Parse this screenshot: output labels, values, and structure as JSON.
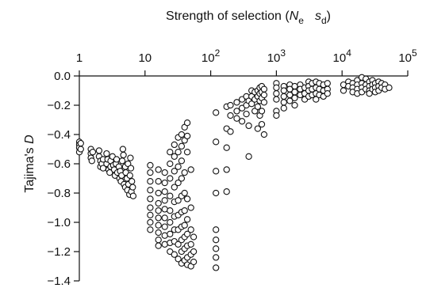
{
  "chart_data": {
    "type": "scatter",
    "title": "",
    "xlabel": {
      "prefix": "Strength of selection (",
      "var1": "N",
      "sub1": "e",
      "var2": "s",
      "sub2": "d",
      "suffix": ")"
    },
    "ylabel": {
      "prefix": "Tajima's ",
      "var": "D"
    },
    "xscale": "log",
    "xlim": [
      1,
      100000
    ],
    "ylim": [
      -1.4,
      0.0
    ],
    "x_axis_position": "top",
    "grid": false,
    "xticks": [
      {
        "value": 1,
        "base": "1",
        "exp": ""
      },
      {
        "value": 10,
        "base": "10",
        "exp": ""
      },
      {
        "value": 100,
        "base": "10",
        "exp": "2"
      },
      {
        "value": 1000,
        "base": "10",
        "exp": "3"
      },
      {
        "value": 10000,
        "base": "10",
        "exp": "4"
      },
      {
        "value": 100000,
        "base": "10",
        "exp": "5"
      }
    ],
    "yticks": [
      {
        "value": 0.0,
        "label": "0.0"
      },
      {
        "value": -0.2,
        "label": "−0.2"
      },
      {
        "value": -0.4,
        "label": "−0.4"
      },
      {
        "value": -0.6,
        "label": "−0.6"
      },
      {
        "value": -0.8,
        "label": "−0.8"
      },
      {
        "value": -1.0,
        "label": "−1.0"
      },
      {
        "value": -1.2,
        "label": "−1.2"
      },
      {
        "value": -1.4,
        "label": "−1.4"
      }
    ],
    "points": [
      [
        1.0,
        -0.45
      ],
      [
        1.0,
        -0.47
      ],
      [
        1.0,
        -0.49
      ],
      [
        1.0,
        -0.52
      ],
      [
        1.05,
        -0.46
      ],
      [
        1.05,
        -0.5
      ],
      [
        1.5,
        -0.5
      ],
      [
        1.5,
        -0.53
      ],
      [
        1.5,
        -0.56
      ],
      [
        1.55,
        -0.58
      ],
      [
        1.6,
        -0.52
      ],
      [
        2.0,
        -0.51
      ],
      [
        2.0,
        -0.55
      ],
      [
        2.1,
        -0.58
      ],
      [
        2.1,
        -0.62
      ],
      [
        2.2,
        -0.6
      ],
      [
        2.3,
        -0.57
      ],
      [
        2.3,
        -0.63
      ],
      [
        2.6,
        -0.53
      ],
      [
        2.6,
        -0.6
      ],
      [
        2.7,
        -0.57
      ],
      [
        2.8,
        -0.64
      ],
      [
        2.9,
        -0.66
      ],
      [
        3.0,
        -0.58
      ],
      [
        3.0,
        -0.62
      ],
      [
        3.2,
        -0.55
      ],
      [
        3.3,
        -0.61
      ],
      [
        3.4,
        -0.64
      ],
      [
        3.5,
        -0.68
      ],
      [
        3.6,
        -0.6
      ],
      [
        3.7,
        -0.57
      ],
      [
        3.8,
        -0.66
      ],
      [
        4.0,
        -0.62
      ],
      [
        4.1,
        -0.7
      ],
      [
        4.2,
        -0.65
      ],
      [
        4.3,
        -0.72
      ],
      [
        4.4,
        -0.68
      ],
      [
        4.5,
        -0.58
      ],
      [
        4.6,
        -0.5
      ],
      [
        4.7,
        -0.54
      ],
      [
        4.8,
        -0.74
      ],
      [
        5.0,
        -0.62
      ],
      [
        5.0,
        -0.76
      ],
      [
        5.1,
        -0.66
      ],
      [
        5.3,
        -0.7
      ],
      [
        5.4,
        -0.78
      ],
      [
        5.5,
        -0.6
      ],
      [
        5.6,
        -0.74
      ],
      [
        5.8,
        -0.81
      ],
      [
        5.9,
        -0.68
      ],
      [
        6.0,
        -0.56
      ],
      [
        6.1,
        -0.63
      ],
      [
        6.2,
        -0.79
      ],
      [
        6.3,
        -0.72
      ],
      [
        6.5,
        -0.76
      ],
      [
        6.6,
        -0.82
      ],
      [
        12,
        -0.61
      ],
      [
        12,
        -0.66
      ],
      [
        12,
        -0.72
      ],
      [
        12,
        -0.78
      ],
      [
        12,
        -0.84
      ],
      [
        12,
        -0.9
      ],
      [
        12,
        -0.95
      ],
      [
        12,
        -1.0
      ],
      [
        12,
        -1.05
      ],
      [
        16,
        -0.64
      ],
      [
        16,
        -0.72
      ],
      [
        16,
        -0.8
      ],
      [
        16,
        -0.87
      ],
      [
        16,
        -0.92
      ],
      [
        16,
        -0.97
      ],
      [
        16,
        -1.02
      ],
      [
        16,
        -1.07
      ],
      [
        16,
        -1.12
      ],
      [
        16,
        -1.16
      ],
      [
        20,
        -0.66
      ],
      [
        20,
        -0.73
      ],
      [
        20,
        -0.79
      ],
      [
        20,
        -0.85
      ],
      [
        20,
        -0.91
      ],
      [
        20,
        -0.97
      ],
      [
        20,
        -1.03
      ],
      [
        20,
        -1.09
      ],
      [
        20,
        -1.15
      ],
      [
        24,
        -0.52
      ],
      [
        24,
        -0.6
      ],
      [
        24,
        -0.7
      ],
      [
        24,
        -0.82
      ],
      [
        24,
        -0.92
      ],
      [
        24,
        -1.0
      ],
      [
        24,
        -1.08
      ],
      [
        24,
        -1.14
      ],
      [
        24,
        -1.2
      ],
      [
        28,
        -0.47
      ],
      [
        28,
        -0.55
      ],
      [
        28,
        -0.65
      ],
      [
        28,
        -0.76
      ],
      [
        28,
        -0.86
      ],
      [
        28,
        -0.96
      ],
      [
        28,
        -1.05
      ],
      [
        28,
        -1.13
      ],
      [
        28,
        -1.22
      ],
      [
        32,
        -0.42
      ],
      [
        32,
        -0.52
      ],
      [
        32,
        -0.62
      ],
      [
        32,
        -0.73
      ],
      [
        32,
        -0.85
      ],
      [
        32,
        -0.95
      ],
      [
        32,
        -1.05
      ],
      [
        32,
        -1.15
      ],
      [
        32,
        -1.25
      ],
      [
        36,
        -0.4
      ],
      [
        36,
        -0.48
      ],
      [
        36,
        -0.58
      ],
      [
        36,
        -0.7
      ],
      [
        36,
        -0.82
      ],
      [
        36,
        -0.93
      ],
      [
        36,
        -1.03
      ],
      [
        36,
        -1.12
      ],
      [
        36,
        -1.2
      ],
      [
        36,
        -1.28
      ],
      [
        40,
        -0.35
      ],
      [
        40,
        -0.44
      ],
      [
        40,
        -0.66
      ],
      [
        40,
        -0.8
      ],
      [
        40,
        -0.92
      ],
      [
        40,
        -1.02
      ],
      [
        40,
        -1.1
      ],
      [
        40,
        -1.18
      ],
      [
        40,
        -1.26
      ],
      [
        44,
        -0.32
      ],
      [
        44,
        -0.41
      ],
      [
        44,
        -0.52
      ],
      [
        44,
        -0.84
      ],
      [
        44,
        -0.98
      ],
      [
        44,
        -1.08
      ],
      [
        44,
        -1.16
      ],
      [
        44,
        -1.24
      ],
      [
        44,
        -1.29
      ],
      [
        50,
        -0.64
      ],
      [
        50,
        -0.9
      ],
      [
        50,
        -1.05
      ],
      [
        50,
        -1.15
      ],
      [
        50,
        -1.22
      ],
      [
        50,
        -1.3
      ],
      [
        55,
        -1.1
      ],
      [
        55,
        -1.2
      ],
      [
        55,
        -1.27
      ],
      [
        120,
        -0.25
      ],
      [
        120,
        -0.45
      ],
      [
        120,
        -0.65
      ],
      [
        120,
        -0.8
      ],
      [
        120,
        -1.05
      ],
      [
        120,
        -1.12
      ],
      [
        120,
        -1.18
      ],
      [
        120,
        -1.24
      ],
      [
        120,
        -1.31
      ],
      [
        175,
        -0.21
      ],
      [
        175,
        -0.36
      ],
      [
        175,
        -0.49
      ],
      [
        175,
        -0.64
      ],
      [
        175,
        -0.79
      ],
      [
        200,
        -0.2
      ],
      [
        200,
        -0.27
      ],
      [
        200,
        -0.38
      ],
      [
        250,
        -0.18
      ],
      [
        250,
        -0.24
      ],
      [
        250,
        -0.29
      ],
      [
        300,
        -0.16
      ],
      [
        300,
        -0.22
      ],
      [
        300,
        -0.31
      ],
      [
        350,
        -0.14
      ],
      [
        350,
        -0.2
      ],
      [
        350,
        -0.26
      ],
      [
        380,
        -0.17
      ],
      [
        380,
        -0.34
      ],
      [
        380,
        -0.55
      ],
      [
        420,
        -0.1
      ],
      [
        420,
        -0.14
      ],
      [
        420,
        -0.19
      ],
      [
        470,
        -0.11
      ],
      [
        470,
        -0.16
      ],
      [
        470,
        -0.24
      ],
      [
        520,
        -0.1
      ],
      [
        520,
        -0.14
      ],
      [
        520,
        -0.21
      ],
      [
        520,
        -0.36
      ],
      [
        560,
        -0.08
      ],
      [
        560,
        -0.12
      ],
      [
        560,
        -0.17
      ],
      [
        560,
        -0.27
      ],
      [
        600,
        -0.07
      ],
      [
        600,
        -0.11
      ],
      [
        600,
        -0.15
      ],
      [
        600,
        -0.24
      ],
      [
        600,
        -0.33
      ],
      [
        650,
        -0.09
      ],
      [
        650,
        -0.13
      ],
      [
        650,
        -0.18
      ],
      [
        650,
        -0.4
      ],
      [
        1000,
        -0.05
      ],
      [
        1000,
        -0.08
      ],
      [
        1000,
        -0.12
      ],
      [
        1000,
        -0.16
      ],
      [
        1000,
        -0.24
      ],
      [
        1000,
        -0.27
      ],
      [
        1300,
        -0.07
      ],
      [
        1300,
        -0.1
      ],
      [
        1300,
        -0.14
      ],
      [
        1300,
        -0.18
      ],
      [
        1300,
        -0.22
      ],
      [
        1600,
        -0.06
      ],
      [
        1600,
        -0.09
      ],
      [
        1600,
        -0.13
      ],
      [
        1600,
        -0.17
      ],
      [
        1900,
        -0.07
      ],
      [
        1900,
        -0.11
      ],
      [
        1900,
        -0.15
      ],
      [
        1900,
        -0.2
      ],
      [
        2300,
        -0.06
      ],
      [
        2300,
        -0.09
      ],
      [
        2300,
        -0.13
      ],
      [
        2700,
        -0.08
      ],
      [
        2700,
        -0.12
      ],
      [
        2700,
        -0.16
      ],
      [
        3100,
        -0.04
      ],
      [
        3100,
        -0.07
      ],
      [
        3100,
        -0.1
      ],
      [
        3100,
        -0.14
      ],
      [
        3500,
        -0.05
      ],
      [
        3500,
        -0.09
      ],
      [
        3500,
        -0.13
      ],
      [
        4000,
        -0.04
      ],
      [
        4000,
        -0.08
      ],
      [
        4000,
        -0.12
      ],
      [
        4000,
        -0.16
      ],
      [
        4500,
        -0.05
      ],
      [
        4500,
        -0.09
      ],
      [
        4500,
        -0.13
      ],
      [
        5200,
        -0.06
      ],
      [
        5200,
        -0.1
      ],
      [
        5200,
        -0.14
      ],
      [
        6000,
        -0.05
      ],
      [
        6000,
        -0.09
      ],
      [
        6000,
        -0.12
      ],
      [
        10500,
        -0.06
      ],
      [
        10500,
        -0.1
      ],
      [
        12500,
        -0.04
      ],
      [
        12500,
        -0.07
      ],
      [
        14500,
        -0.05
      ],
      [
        14500,
        -0.08
      ],
      [
        14500,
        -0.11
      ],
      [
        17000,
        -0.03
      ],
      [
        17000,
        -0.06
      ],
      [
        17000,
        -0.09
      ],
      [
        17000,
        -0.12
      ],
      [
        20000,
        -0.01
      ],
      [
        20000,
        -0.05
      ],
      [
        20000,
        -0.08
      ],
      [
        20000,
        -0.11
      ],
      [
        23000,
        -0.02
      ],
      [
        23000,
        -0.06
      ],
      [
        23000,
        -0.09
      ],
      [
        26000,
        -0.04
      ],
      [
        26000,
        -0.07
      ],
      [
        26000,
        -0.1
      ],
      [
        26000,
        -0.12
      ],
      [
        29000,
        -0.03
      ],
      [
        29000,
        -0.06
      ],
      [
        29000,
        -0.09
      ],
      [
        32000,
        -0.05
      ],
      [
        32000,
        -0.08
      ],
      [
        32000,
        -0.11
      ],
      [
        36000,
        -0.04
      ],
      [
        36000,
        -0.07
      ],
      [
        36000,
        -0.1
      ],
      [
        40000,
        -0.05
      ],
      [
        40000,
        -0.08
      ],
      [
        45000,
        -0.06
      ],
      [
        45000,
        -0.09
      ],
      [
        52000,
        -0.08
      ]
    ]
  }
}
